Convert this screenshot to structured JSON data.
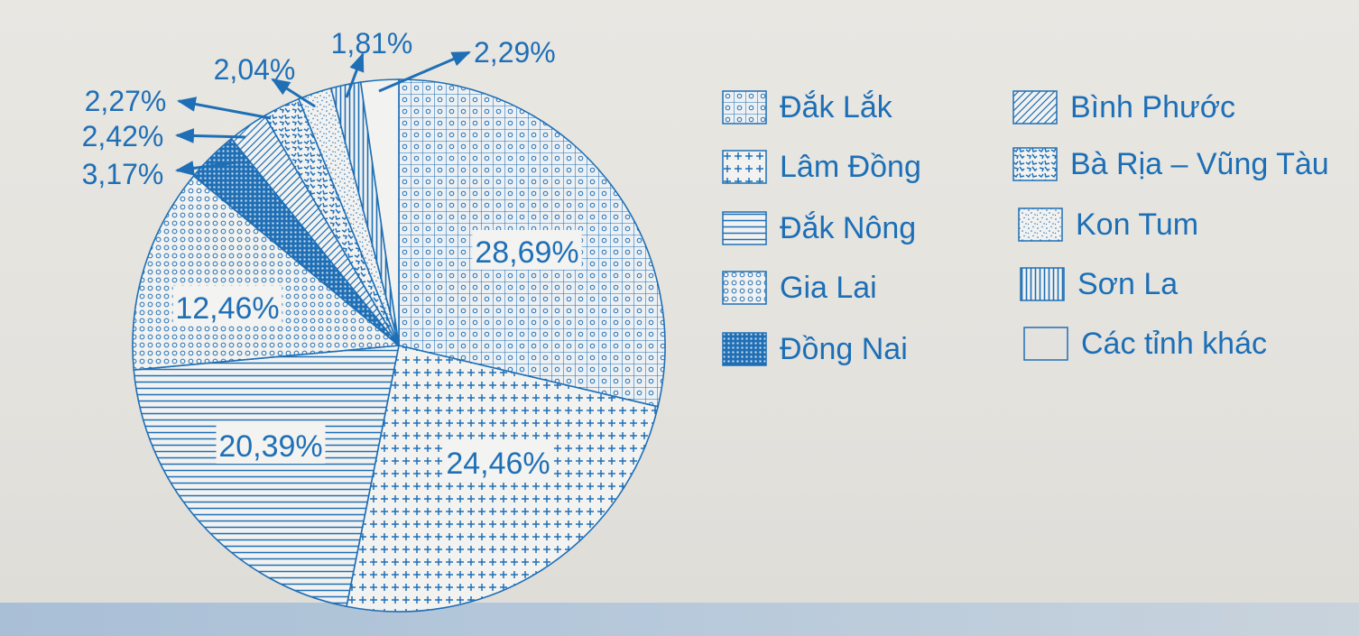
{
  "chart_data": {
    "type": "pie",
    "slices": [
      {
        "name": "Đắk Lắk",
        "value": 28.69,
        "label": "28,69%",
        "pattern": "circles-grid"
      },
      {
        "name": "Lâm Đồng",
        "value": 24.46,
        "label": "24,46%",
        "pattern": "plus"
      },
      {
        "name": "Đắk Nông",
        "value": 20.39,
        "label": "20,39%",
        "pattern": "hlines"
      },
      {
        "name": "Gia Lai",
        "value": 12.46,
        "label": "12,46%",
        "pattern": "small-circles"
      },
      {
        "name": "Đồng Nai",
        "value": 3.17,
        "label": "3,17%",
        "pattern": "dense-grid"
      },
      {
        "name": "Bình Phước",
        "value": 2.42,
        "label": "2,42%",
        "pattern": "diagonal"
      },
      {
        "name": "Bà Rịa – Vũng Tàu",
        "value": 2.27,
        "label": "2,27%",
        "pattern": "squiggle"
      },
      {
        "name": "Kon Tum",
        "value": 2.04,
        "label": "2,04%",
        "pattern": "stipple"
      },
      {
        "name": "Sơn La",
        "value": 1.81,
        "label": "1,81%",
        "pattern": "vlines"
      },
      {
        "name": "Các tỉnh khác",
        "value": 2.29,
        "label": "2,29%",
        "pattern": "none"
      }
    ],
    "start": "12 o'clock",
    "direction": "clockwise",
    "legend_position": "right"
  },
  "colors": {
    "blue": "#1f6fb6",
    "paper": "#e6e4df"
  },
  "legend": [
    {
      "label": "Đắk Lắk",
      "pattern": "circles-grid"
    },
    {
      "label": "Lâm Đồng",
      "pattern": "plus"
    },
    {
      "label": "Đắk Nông",
      "pattern": "hlines"
    },
    {
      "label": "Gia Lai",
      "pattern": "small-circles"
    },
    {
      "label": "Đồng Nai",
      "pattern": "dense-grid"
    },
    {
      "label": "Bình Phước",
      "pattern": "diagonal"
    },
    {
      "label": "Bà Rịa – Vũng Tàu",
      "pattern": "squiggle"
    },
    {
      "label": "Kon Tum",
      "pattern": "stipple"
    },
    {
      "label": "Sơn La",
      "pattern": "vlines"
    },
    {
      "label": "Các tỉnh khác",
      "pattern": "none"
    }
  ]
}
